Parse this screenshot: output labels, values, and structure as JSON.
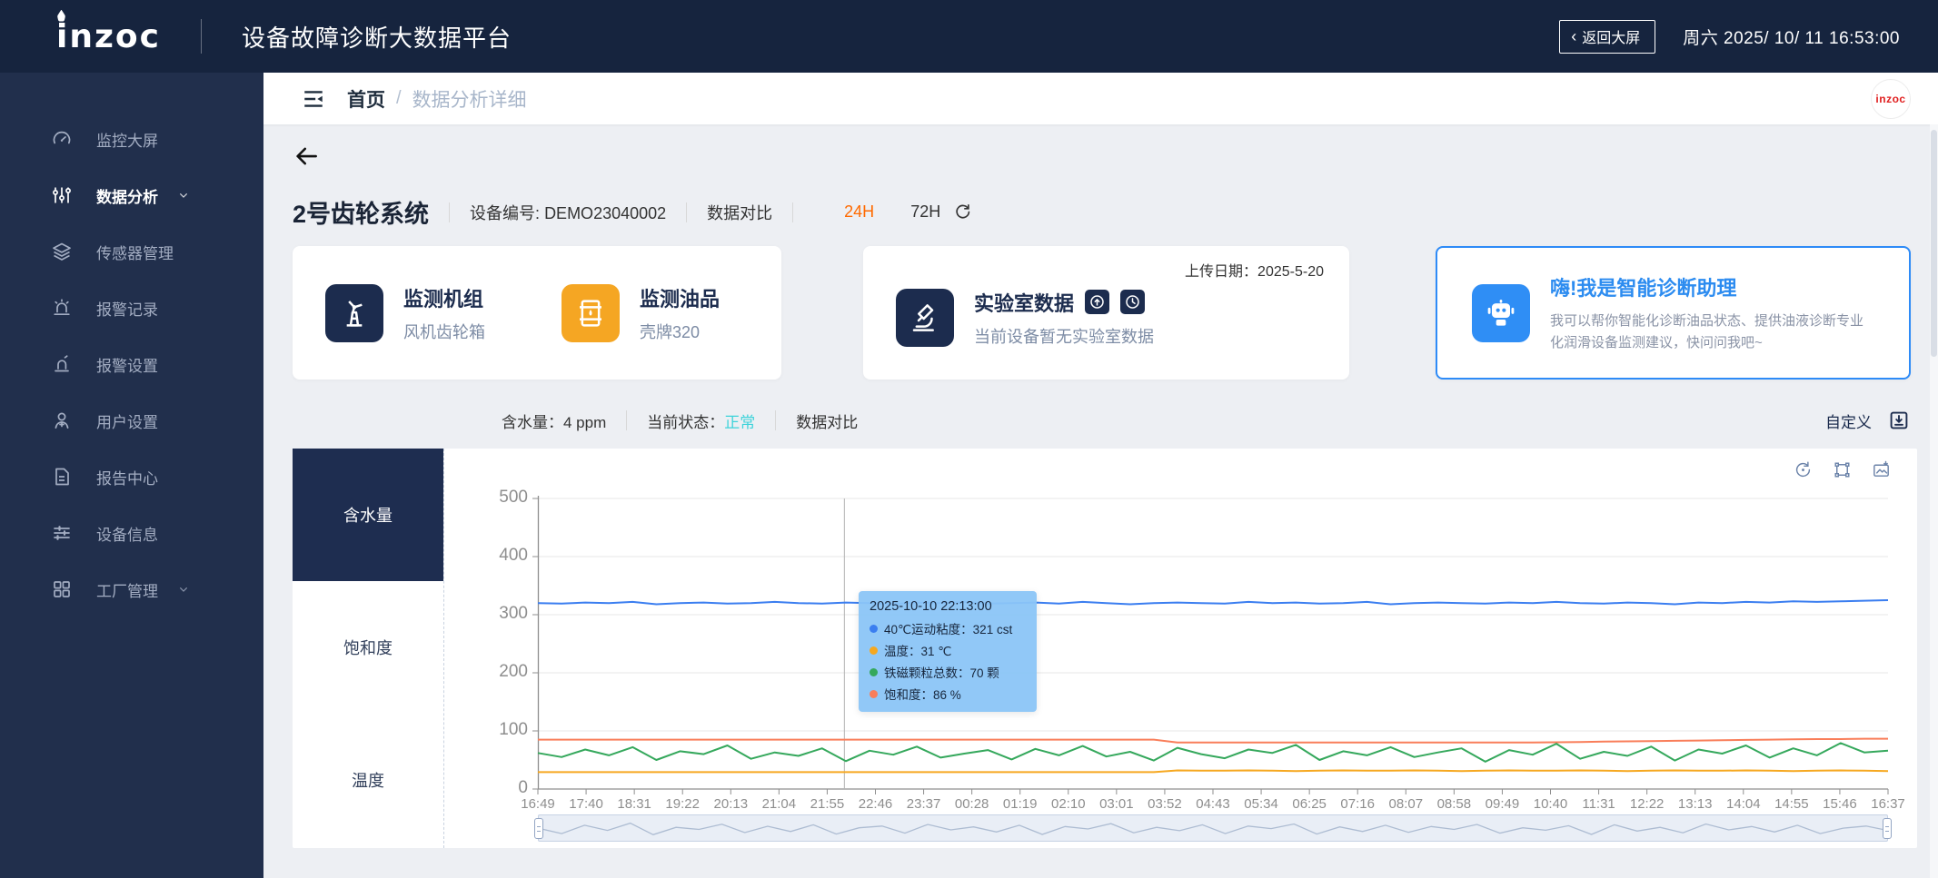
{
  "header": {
    "logo": "inzoc",
    "title": "设备故障诊断大数据平台",
    "back_chevron": "‹",
    "back_button": "返回大屏",
    "datetime": "周六 2025/ 10/ 11 16:53:00"
  },
  "sidebar": {
    "items": [
      {
        "id": "monitor-screen",
        "icon": "gauge",
        "label": "监控大屏",
        "active": false,
        "chevron": false
      },
      {
        "id": "data-analysis",
        "icon": "analysis",
        "label": "数据分析",
        "active": true,
        "chevron": true
      },
      {
        "id": "sensor-management",
        "icon": "layers",
        "label": "传感器管理",
        "active": false,
        "chevron": false
      },
      {
        "id": "alarm-records",
        "icon": "alarm",
        "label": "报警记录",
        "active": false,
        "chevron": false
      },
      {
        "id": "alarm-settings",
        "icon": "alarmset",
        "label": "报警设置",
        "active": false,
        "chevron": false
      },
      {
        "id": "user-settings",
        "icon": "user",
        "label": "用户设置",
        "active": false,
        "chevron": false
      },
      {
        "id": "report-center",
        "icon": "report",
        "label": "报告中心",
        "active": false,
        "chevron": false
      },
      {
        "id": "device-info",
        "icon": "device",
        "label": "设备信息",
        "active": false,
        "chevron": false
      },
      {
        "id": "factory-management",
        "icon": "factory",
        "label": "工厂管理",
        "active": false,
        "chevron": true
      }
    ]
  },
  "breadcrumb": {
    "home": "首页",
    "separator": "/",
    "current": "数据分析详细",
    "avatar_text": "inzoc"
  },
  "device": {
    "name": "2号齿轮系统",
    "code_label": "设备编号:",
    "code": "DEMO23040002",
    "compare_label": "数据对比",
    "range_24h": "24H",
    "range_72h": "72H"
  },
  "cards": {
    "unit": {
      "title": "监测机组",
      "subtitle": "风机齿轮箱"
    },
    "oil": {
      "title": "监测油品",
      "subtitle": "壳牌320"
    },
    "lab": {
      "upload_date_label": "上传日期：",
      "upload_date": "2025-5-20",
      "title": "实验室数据",
      "subtitle": "当前设备暂无实验室数据"
    },
    "assistant": {
      "title": "嗨!我是智能诊断助理",
      "description": "我可以帮你智能化诊断油品状态、提供油液诊断专业化润滑设备监测建议，快问问我吧~"
    }
  },
  "status_bar": {
    "water_label": "含水量：",
    "water_value": "4 ppm",
    "state_label": "当前状态：",
    "state_value": "正常",
    "state_color": "#3ed3da",
    "compare_label": "数据对比",
    "customize_label": "自定义"
  },
  "chart_tabs": [
    {
      "id": "water-content",
      "label": "含水量",
      "active": true
    },
    {
      "id": "saturation",
      "label": "饱和度",
      "active": false
    },
    {
      "id": "temperature",
      "label": "温度",
      "active": false
    }
  ],
  "chart_data": {
    "type": "line",
    "ylim": [
      0,
      500
    ],
    "y_ticks": [
      0,
      100,
      200,
      300,
      400,
      500
    ],
    "grid": true,
    "legend_position": "none",
    "x_ticks": [
      "16:49",
      "17:40",
      "18:31",
      "19:22",
      "20:13",
      "21:04",
      "21:55",
      "22:46",
      "23:37",
      "00:28",
      "01:19",
      "02:10",
      "03:01",
      "03:52",
      "04:43",
      "05:34",
      "06:25",
      "07:16",
      "08:07",
      "08:58",
      "09:49",
      "10:40",
      "11:31",
      "12:22",
      "13:13",
      "14:04",
      "14:55",
      "15:46",
      "16:37"
    ],
    "crosshair_fraction": 0.227,
    "series": [
      {
        "name": "40℃运动粘度",
        "unit": "cst",
        "color": "#3b7ef0",
        "values": [
          320,
          319,
          321,
          320,
          322,
          318,
          320,
          321,
          319,
          320,
          322,
          320,
          319,
          321,
          320,
          318,
          321,
          320,
          322,
          319,
          320,
          321,
          319,
          322,
          320,
          318,
          320,
          321,
          320,
          319,
          322,
          320,
          321,
          319,
          320,
          322,
          318,
          320,
          321,
          320,
          319,
          321,
          320,
          322,
          320,
          319,
          321,
          320,
          318,
          321,
          320,
          322,
          321,
          323,
          322,
          323,
          324,
          325
        ]
      },
      {
        "name": "饱和度",
        "unit": "%",
        "color": "#f97e5a",
        "values": [
          85,
          85,
          85,
          85,
          85,
          85,
          85,
          85,
          85,
          85,
          85,
          85,
          85,
          85,
          85,
          85,
          85,
          85,
          85,
          85,
          85,
          85,
          85,
          85,
          85,
          85,
          85,
          80,
          80,
          80,
          80,
          80,
          80,
          80,
          80,
          80,
          80,
          80,
          80,
          80,
          80,
          80,
          80,
          80.5,
          81,
          81.5,
          82,
          82.5,
          83,
          83.5,
          84,
          84.5,
          85,
          85.5,
          86,
          86,
          86.5,
          86.5
        ]
      },
      {
        "name": "铁磁颗粒总数",
        "unit": "颗",
        "color": "#35a85c",
        "values": [
          62,
          55,
          68,
          58,
          72,
          50,
          65,
          60,
          75,
          52,
          63,
          57,
          70,
          48,
          66,
          59,
          73,
          54,
          61,
          67,
          51,
          69,
          58,
          74,
          56,
          64,
          49,
          71,
          60,
          53,
          68,
          62,
          76,
          50,
          65,
          58,
          72,
          55,
          63,
          70,
          47,
          67,
          59,
          78,
          52,
          64,
          57,
          73,
          49,
          68,
          61,
          75,
          54,
          70,
          58,
          79,
          63,
          66
        ]
      },
      {
        "name": "温度",
        "unit": "℃",
        "color": "#f6a820",
        "values": [
          29,
          29,
          29,
          29,
          29,
          29,
          29,
          29,
          29,
          29,
          29,
          29,
          29,
          29,
          29,
          29,
          29,
          29,
          29,
          29,
          29,
          29,
          29,
          29,
          29,
          29,
          29,
          32,
          31.5,
          31.5,
          32,
          31.5,
          31,
          31.5,
          32,
          31.5,
          31.5,
          32,
          31.5,
          31,
          31.5,
          32,
          31.5,
          31.5,
          32,
          31.5,
          31,
          31.5,
          32,
          31.5,
          31.5,
          32,
          31.5,
          31,
          31.5,
          32,
          31.5,
          31
        ]
      }
    ],
    "overview": [
      55,
      30,
      70,
      45,
      80,
      25,
      60,
      50,
      75,
      35,
      65,
      40,
      72,
      28,
      58,
      66,
      32,
      74,
      48,
      62,
      38,
      70,
      26,
      64,
      52,
      78,
      34,
      60,
      44,
      72,
      30,
      66,
      54,
      76,
      28,
      62,
      40,
      70,
      36,
      64,
      50,
      74,
      32,
      58,
      46,
      68,
      26,
      72,
      42,
      60,
      34,
      76,
      48,
      64,
      38,
      70,
      30,
      56,
      66,
      44
    ],
    "tooltip": {
      "time": "2025-10-10 22:13:00",
      "items": [
        {
          "color": "#3b7ef0",
          "text": "40℃运动粘度：321 cst"
        },
        {
          "color": "#f6a820",
          "text": "温度：31 ℃"
        },
        {
          "color": "#35a85c",
          "text": "铁磁颗粒总数：70 颗"
        },
        {
          "color": "#f97e5a",
          "text": "饱和度：86 %"
        }
      ]
    }
  }
}
